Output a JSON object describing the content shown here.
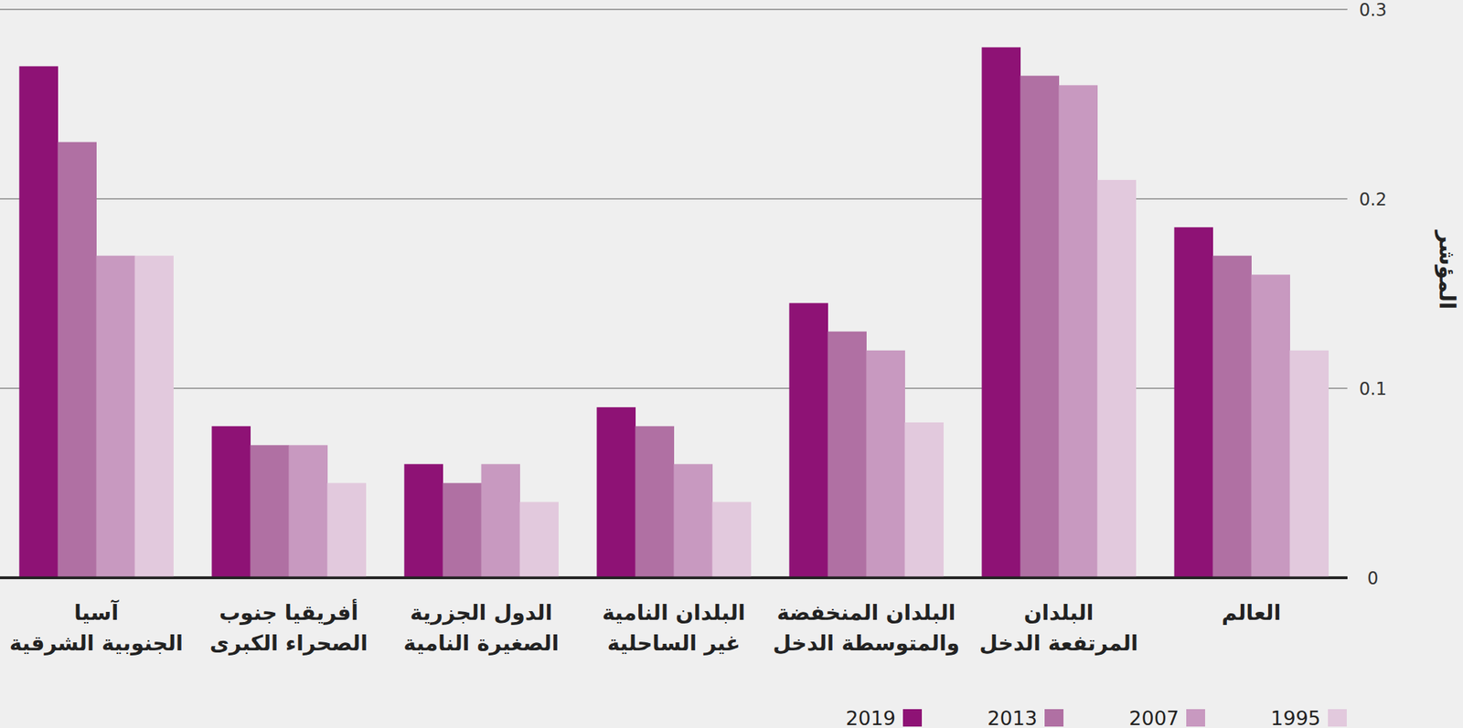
{
  "chart_data": {
    "type": "bar",
    "y_label": "المؤشر",
    "categories": [
      "العالم",
      "البلدان\nالمرتفعة الدخل",
      "البلدان المنخفضة\nوالمتوسطة الدخل",
      "البلدان النامية\nغير الساحلية",
      "الدول الجزرية\nالصغيرة النامية",
      "أفريقيا جنوب\nالصحراء الكبرى",
      "آسيا\nالجنوبية الشرقية"
    ],
    "series": [
      {
        "name": "2019",
        "color": "#8e1275",
        "values": [
          0.185,
          0.28,
          0.145,
          0.09,
          0.06,
          0.08,
          0.27
        ]
      },
      {
        "name": "2013",
        "color": "#b070a3",
        "values": [
          0.17,
          0.265,
          0.13,
          0.08,
          0.05,
          0.07,
          0.23
        ]
      },
      {
        "name": "2007",
        "color": "#c899c0",
        "values": [
          0.16,
          0.26,
          0.12,
          0.06,
          0.06,
          0.07,
          0.17
        ]
      },
      {
        "name": "1995",
        "color": "#e2c9dd",
        "values": [
          0.12,
          0.21,
          0.082,
          0.04,
          0.04,
          0.05,
          0.17
        ]
      }
    ],
    "ylim": [
      0,
      0.3
    ],
    "yticks": [
      0,
      0.1,
      0.2,
      0.3
    ],
    "grid": true,
    "legend": "bottom"
  }
}
